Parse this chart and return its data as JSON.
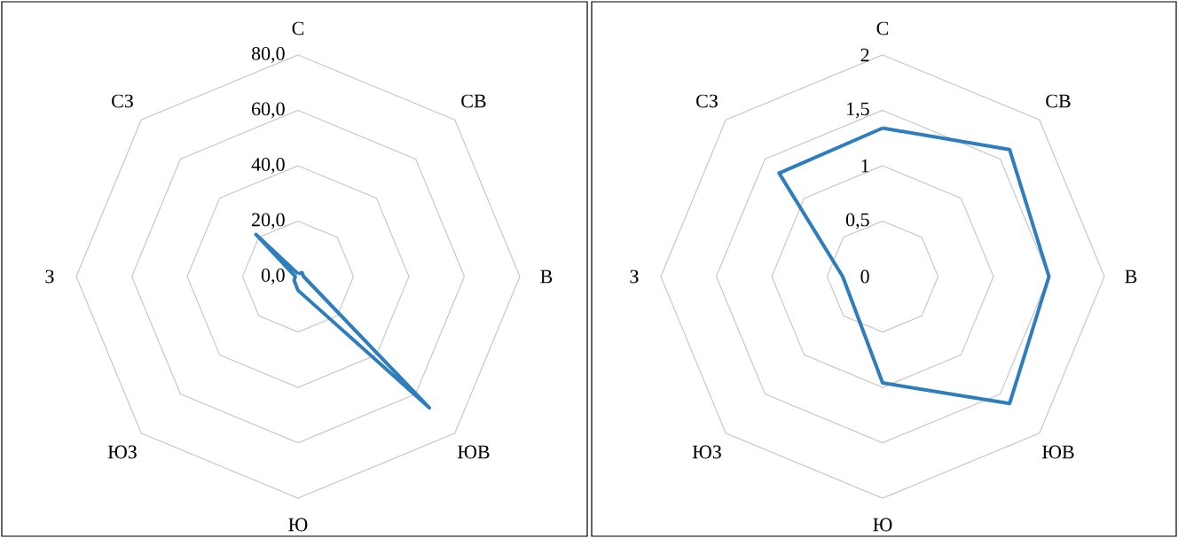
{
  "chart_data": [
    {
      "type": "radar",
      "categories": [
        "С",
        "СВ",
        "В",
        "ЮВ",
        "Ю",
        "ЮЗ",
        "З",
        "СЗ"
      ],
      "series": [
        {
          "color": "#2e7dbd",
          "values": [
            1,
            2,
            2,
            67,
            5,
            2,
            1,
            21.5
          ]
        }
      ],
      "ylim": [
        0,
        80
      ],
      "yticks": [
        {
          "value": 0,
          "label": "0,0"
        },
        {
          "value": 20,
          "label": "20,0"
        },
        {
          "value": 40,
          "label": "40,0"
        },
        {
          "value": 60,
          "label": "60,0"
        },
        {
          "value": 80,
          "label": "80,0"
        }
      ],
      "grid": true
    },
    {
      "type": "radar",
      "categories": [
        "С",
        "СВ",
        "В",
        "ЮВ",
        "Ю",
        "ЮЗ",
        "З",
        "СЗ"
      ],
      "series": [
        {
          "color": "#2e7dbd",
          "values": [
            1.34,
            1.62,
            1.5,
            1.62,
            0.96,
            0.37,
            0.36,
            1.32
          ]
        }
      ],
      "ylim": [
        0,
        2
      ],
      "yticks": [
        0,
        {
          "value": 0.5,
          "label": "0,5"
        },
        1,
        {
          "value": 1.5,
          "label": "1,5"
        },
        2
      ],
      "grid": true
    }
  ]
}
